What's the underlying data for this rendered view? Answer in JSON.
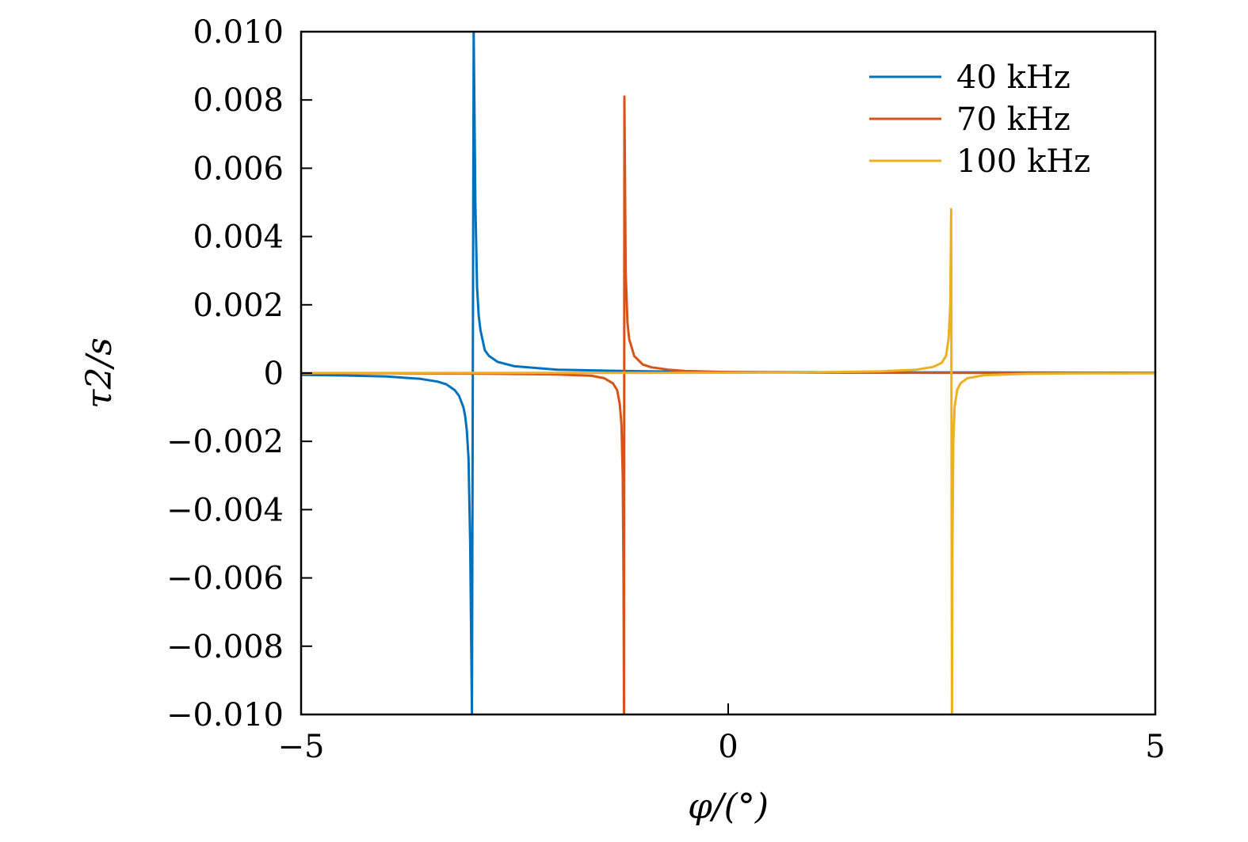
{
  "chart_data": {
    "type": "line",
    "xlabel": "φ/(°)",
    "ylabel": "τ2/s",
    "xlim": [
      -5,
      5
    ],
    "ylim": [
      -0.01,
      0.01
    ],
    "x_ticks": [
      -5,
      0,
      5
    ],
    "x_tick_labels": [
      "−5",
      "0",
      "5"
    ],
    "y_ticks": [
      0.01,
      0.008,
      0.006,
      0.004,
      0.002,
      0,
      -0.002,
      -0.004,
      -0.006,
      -0.008,
      -0.01
    ],
    "y_tick_labels": [
      "0.010",
      "0.008",
      "0.006",
      "0.004",
      "0.002",
      "0",
      "−0.002",
      "−0.004",
      "−0.006",
      "−0.008",
      "−0.010"
    ],
    "grid": false,
    "legend_position": "top-right",
    "series": [
      {
        "name": "40 kHz",
        "color": "#0072BD",
        "pole_x": -3.0,
        "x": [
          -5,
          -4.5,
          -4.0,
          -3.6,
          -3.4,
          -3.3,
          -3.2,
          -3.15,
          -3.1,
          -3.08,
          -3.06,
          -3.04,
          -3.02,
          -3.0,
          -2.98,
          -2.96,
          -2.94,
          -2.92,
          -2.9,
          -2.85,
          -2.8,
          -2.7,
          -2.5,
          -2.0,
          -1.0,
          0,
          2,
          5
        ],
        "y": [
          -5e-05,
          -7e-05,
          -0.0001,
          -0.00017,
          -0.00025,
          -0.00033,
          -0.0005,
          -0.00067,
          -0.001,
          -0.00125,
          -0.00167,
          -0.0025,
          -0.005,
          -0.01,
          0.01,
          0.005,
          0.0025,
          0.00167,
          0.00125,
          0.00067,
          0.0005,
          0.00033,
          0.0002,
          0.0001,
          5e-05,
          3e-05,
          2e-05,
          1e-05
        ]
      },
      {
        "name": "70 kHz",
        "color": "#D95319",
        "pole_x": -1.22,
        "x": [
          -5,
          -4.0,
          -3.0,
          -2.0,
          -1.6,
          -1.45,
          -1.35,
          -1.3,
          -1.27,
          -1.25,
          -1.235,
          -1.225,
          -1.22,
          -1.215,
          -1.2,
          -1.18,
          -1.16,
          -1.1,
          -1.0,
          -0.9,
          -0.7,
          -0.5,
          0,
          1,
          3,
          5
        ],
        "y": [
          -5e-06,
          -8e-06,
          -1.5e-05,
          -4e-05,
          -8e-05,
          -0.00015,
          -0.0003,
          -0.0005,
          -0.0009,
          -0.0015,
          -0.003,
          -0.006,
          -0.01,
          0.0081,
          0.003,
          0.0015,
          0.001,
          0.0005,
          0.00025,
          0.00017,
          0.0001,
          6e-05,
          3e-05,
          1.2e-05,
          5e-06,
          3e-06
        ]
      },
      {
        "name": "100 kHz",
        "color": "#EDB120",
        "pole_x": 2.62,
        "x": [
          -5,
          -3.0,
          -1.0,
          0,
          1.0,
          1.8,
          2.2,
          2.4,
          2.5,
          2.55,
          2.58,
          2.6,
          2.61,
          2.62,
          2.625,
          2.635,
          2.65,
          2.68,
          2.72,
          2.8,
          3.0,
          3.5,
          4.0,
          5
        ],
        "y": [
          3e-06,
          5e-06,
          8e-06,
          1e-05,
          2e-05,
          5e-05,
          0.0001,
          0.00018,
          0.0003,
          0.0005,
          0.001,
          0.002,
          0.0048,
          -0.01,
          -0.005,
          -0.002,
          -0.001,
          -0.0005,
          -0.0003,
          -0.00015,
          -6e-05,
          -2e-05,
          -1e-05,
          -5e-06
        ]
      }
    ]
  }
}
